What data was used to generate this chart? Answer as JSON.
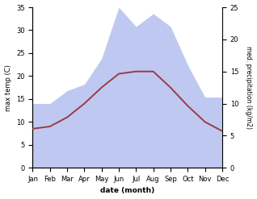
{
  "months": [
    "Jan",
    "Feb",
    "Mar",
    "Apr",
    "May",
    "Jun",
    "Jul",
    "Aug",
    "Sep",
    "Oct",
    "Nov",
    "Dec"
  ],
  "month_indices": [
    0,
    1,
    2,
    3,
    4,
    5,
    6,
    7,
    8,
    9,
    10,
    11
  ],
  "temperature": [
    8.5,
    9.0,
    11.0,
    14.0,
    17.5,
    20.5,
    21.0,
    21.0,
    17.5,
    13.5,
    10.0,
    8.0
  ],
  "precipitation": [
    10.0,
    10.0,
    12.0,
    13.0,
    17.0,
    25.0,
    22.0,
    24.0,
    22.0,
    16.0,
    11.0,
    11.0
  ],
  "temp_color": "#9b3a4a",
  "precip_color_fill": "#bfc8f0",
  "temp_ylim": [
    0,
    35
  ],
  "precip_ylim": [
    0,
    25
  ],
  "temp_yticks": [
    0,
    5,
    10,
    15,
    20,
    25,
    30,
    35
  ],
  "precip_yticks": [
    0,
    5,
    10,
    15,
    20,
    25
  ],
  "xlabel": "date (month)",
  "ylabel_left": "max temp (C)",
  "ylabel_right": "med. precipitation (kg/m2)",
  "fig_width": 3.18,
  "fig_height": 2.47,
  "dpi": 100
}
